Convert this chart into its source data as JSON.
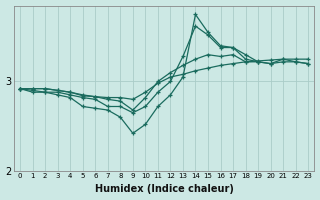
{
  "xlabel": "Humidex (Indice chaleur)",
  "bg_color": "#cce8e4",
  "grid_color": "#aaccc8",
  "line_color": "#1a6b5e",
  "x": [
    0,
    1,
    2,
    3,
    4,
    5,
    6,
    7,
    8,
    9,
    10,
    11,
    12,
    13,
    14,
    15,
    16,
    17,
    18,
    19,
    20,
    21,
    22,
    23
  ],
  "line1": [
    2.92,
    2.92,
    2.92,
    2.9,
    2.88,
    2.85,
    2.83,
    2.82,
    2.82,
    2.8,
    2.88,
    2.98,
    3.05,
    3.08,
    3.12,
    3.15,
    3.18,
    3.2,
    3.22,
    3.23,
    3.24,
    3.25,
    3.25,
    3.25
  ],
  "line2": [
    2.92,
    2.92,
    2.92,
    2.9,
    2.88,
    2.84,
    2.83,
    2.8,
    2.78,
    2.68,
    2.82,
    3.0,
    3.1,
    3.18,
    3.25,
    3.3,
    3.28,
    3.3,
    3.22,
    3.22,
    3.2,
    3.25,
    3.22,
    3.2
  ],
  "line3": [
    2.92,
    2.88,
    2.88,
    2.88,
    2.85,
    2.82,
    2.8,
    2.72,
    2.72,
    2.65,
    2.72,
    2.88,
    3.0,
    3.28,
    3.62,
    3.52,
    3.38,
    3.38,
    3.3,
    3.22,
    3.2,
    3.22,
    3.22,
    3.2
  ],
  "line4": [
    2.92,
    2.9,
    2.88,
    2.85,
    2.82,
    2.72,
    2.7,
    2.68,
    2.6,
    2.42,
    2.52,
    2.72,
    2.85,
    3.05,
    3.75,
    3.55,
    3.4,
    3.38,
    3.25,
    3.22,
    null,
    null,
    null,
    null
  ],
  "ylim": [
    2.0,
    3.85
  ],
  "yticks": [
    2,
    3
  ],
  "xlim": [
    -0.5,
    23.5
  ]
}
